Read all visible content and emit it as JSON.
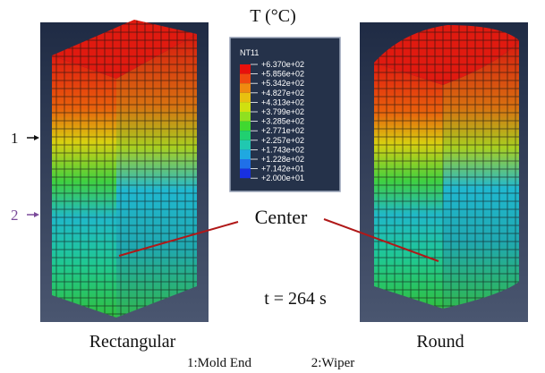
{
  "header": {
    "title": "T (°C)"
  },
  "legend": {
    "title": "NT11",
    "labels": [
      "+6.370e+02",
      "+5.856e+02",
      "+5.342e+02",
      "+4.827e+02",
      "+4.313e+02",
      "+3.799e+02",
      "+3.285e+02",
      "+2.771e+02",
      "+2.257e+02",
      "+1.743e+02",
      "+1.228e+02",
      "+7.142e+01",
      "+2.000e+01"
    ]
  },
  "markers": [
    "1",
    "2"
  ],
  "annotations": {
    "center": "Center",
    "time": "t = 264 s"
  },
  "captions": [
    "Rectangular",
    "Round"
  ],
  "footnote": [
    "1:Mold End",
    "2:Wiper"
  ]
}
